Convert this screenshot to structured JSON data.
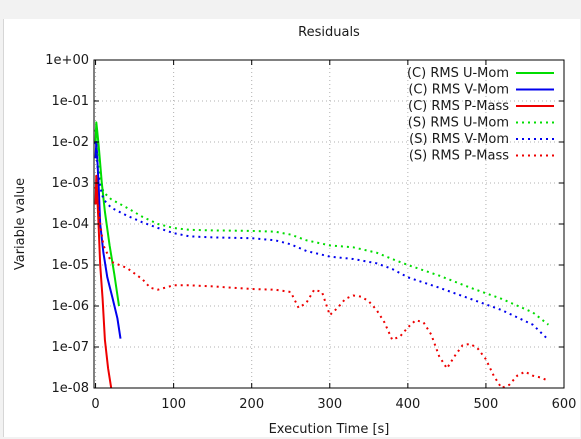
{
  "chart_data": {
    "type": "line",
    "title": "Residuals",
    "xlabel": "Execution Time [s]",
    "ylabel": "Variable value",
    "xlim": [
      -2,
      600
    ],
    "ylim": [
      1e-08,
      1
    ],
    "yscale": "log",
    "grid": true,
    "legend_position": "top-right",
    "x_ticks": [
      0,
      100,
      200,
      300,
      400,
      500,
      600
    ],
    "x_tick_labels": [
      "0",
      "100",
      "200",
      "300",
      "400",
      "500",
      "600"
    ],
    "y_ticks": [
      1,
      0.1,
      0.01,
      0.001,
      0.0001,
      1e-05,
      1e-06,
      1e-07,
      1e-08
    ],
    "y_tick_labels": [
      "1e+00",
      "1e-01",
      "1e-02",
      "1e-03",
      "1e-04",
      "1e-05",
      "1e-06",
      "1e-07",
      "1e-08"
    ],
    "series": [
      {
        "name": "(C) RMS U-Mom",
        "color": "#00dd00",
        "style": "solid",
        "points": [
          [
            0,
            0.009
          ],
          [
            1,
            0.03
          ],
          [
            2,
            0.02
          ],
          [
            4,
            0.008
          ],
          [
            8,
            0.001
          ],
          [
            12,
            0.0002
          ],
          [
            18,
            3e-05
          ],
          [
            24,
            6e-06
          ],
          [
            30,
            1e-06
          ]
        ]
      },
      {
        "name": "(C) RMS V-Mom",
        "color": "#0000ee",
        "style": "solid",
        "points": [
          [
            0,
            0.004
          ],
          [
            1,
            0.01
          ],
          [
            2,
            0.005
          ],
          [
            4,
            0.0008
          ],
          [
            6,
            0.0001
          ],
          [
            10,
            2e-05
          ],
          [
            15,
            5e-06
          ],
          [
            22,
            1.5e-06
          ],
          [
            28,
            5e-07
          ],
          [
            32,
            1.6e-07
          ]
        ]
      },
      {
        "name": "(C) RMS P-Mass",
        "color": "#ee0000",
        "style": "solid",
        "points": [
          [
            0,
            0.0003
          ],
          [
            1,
            0.0015
          ],
          [
            2,
            0.0006
          ],
          [
            4,
            8e-05
          ],
          [
            6,
            1e-05
          ],
          [
            9,
            1.5e-06
          ],
          [
            12,
            1.5e-07
          ],
          [
            16,
            3e-08
          ],
          [
            20,
            1e-08
          ]
        ]
      },
      {
        "name": "(S) RMS U-Mom",
        "color": "#00dd00",
        "style": "dotted",
        "points": [
          [
            0,
            0.02
          ],
          [
            3,
            0.003
          ],
          [
            6,
            0.0013
          ],
          [
            10,
            0.0006
          ],
          [
            20,
            0.0004
          ],
          [
            40,
            0.00025
          ],
          [
            60,
            0.00015
          ],
          [
            80,
            0.0001
          ],
          [
            100,
            8e-05
          ],
          [
            120,
            7.2e-05
          ],
          [
            150,
            7e-05
          ],
          [
            200,
            6.8e-05
          ],
          [
            230,
            6.5e-05
          ],
          [
            250,
            5.5e-05
          ],
          [
            270,
            4e-05
          ],
          [
            300,
            3e-05
          ],
          [
            330,
            2.7e-05
          ],
          [
            360,
            2e-05
          ],
          [
            380,
            1.4e-05
          ],
          [
            400,
            1e-05
          ],
          [
            440,
            5.5e-06
          ],
          [
            480,
            2.8e-06
          ],
          [
            520,
            1.5e-06
          ],
          [
            560,
            7e-07
          ],
          [
            580,
            3.5e-07
          ]
        ]
      },
      {
        "name": "(S) RMS V-Mom",
        "color": "#0000ee",
        "style": "dotted",
        "points": [
          [
            0,
            0.01
          ],
          [
            3,
            0.002
          ],
          [
            6,
            0.0008
          ],
          [
            10,
            0.0004
          ],
          [
            20,
            0.00025
          ],
          [
            40,
            0.00016
          ],
          [
            60,
            0.00011
          ],
          [
            80,
            8e-05
          ],
          [
            100,
            6e-05
          ],
          [
            120,
            5e-05
          ],
          [
            150,
            4.7e-05
          ],
          [
            200,
            4.5e-05
          ],
          [
            230,
            4e-05
          ],
          [
            250,
            3.2e-05
          ],
          [
            270,
            2.2e-05
          ],
          [
            300,
            1.6e-05
          ],
          [
            330,
            1.4e-05
          ],
          [
            360,
            1.1e-05
          ],
          [
            380,
            8e-06
          ],
          [
            400,
            5e-06
          ],
          [
            440,
            2.8e-06
          ],
          [
            480,
            1.5e-06
          ],
          [
            520,
            8e-07
          ],
          [
            560,
            3.5e-07
          ],
          [
            580,
            1.5e-07
          ]
        ]
      },
      {
        "name": "(S) RMS P-Mass",
        "color": "#ee0000",
        "style": "dotted",
        "points": [
          [
            0,
            0.0008
          ],
          [
            3,
            0.0003
          ],
          [
            6,
            0.0001
          ],
          [
            10,
            3e-05
          ],
          [
            20,
            1.2e-05
          ],
          [
            40,
            8.5e-06
          ],
          [
            60,
            4.5e-06
          ],
          [
            70,
            2.8e-06
          ],
          [
            80,
            2.5e-06
          ],
          [
            100,
            3.2e-06
          ],
          [
            120,
            3.2e-06
          ],
          [
            150,
            3e-06
          ],
          [
            200,
            2.6e-06
          ],
          [
            230,
            2.5e-06
          ],
          [
            250,
            2.2e-06
          ],
          [
            260,
            9e-07
          ],
          [
            270,
            1.2e-06
          ],
          [
            280,
            2.5e-06
          ],
          [
            290,
            2.2e-06
          ],
          [
            300,
            6e-07
          ],
          [
            310,
            9e-07
          ],
          [
            320,
            1.5e-06
          ],
          [
            330,
            1.8e-06
          ],
          [
            340,
            1.7e-06
          ],
          [
            350,
            1.3e-06
          ],
          [
            360,
            8e-07
          ],
          [
            370,
            4e-07
          ],
          [
            380,
            1.5e-07
          ],
          [
            390,
            1.8e-07
          ],
          [
            400,
            3e-07
          ],
          [
            410,
            4.5e-07
          ],
          [
            420,
            4e-07
          ],
          [
            430,
            2e-07
          ],
          [
            440,
            6e-08
          ],
          [
            450,
            3e-08
          ],
          [
            460,
            6e-08
          ],
          [
            470,
            1.1e-07
          ],
          [
            480,
            1.2e-07
          ],
          [
            490,
            9e-08
          ],
          [
            500,
            5e-08
          ],
          [
            510,
            2e-08
          ],
          [
            520,
            1e-08
          ],
          [
            530,
            1.2e-08
          ],
          [
            540,
            2e-08
          ],
          [
            550,
            2.5e-08
          ],
          [
            560,
            2e-08
          ],
          [
            570,
            1.8e-08
          ],
          [
            580,
            1.5e-08
          ]
        ]
      }
    ]
  }
}
